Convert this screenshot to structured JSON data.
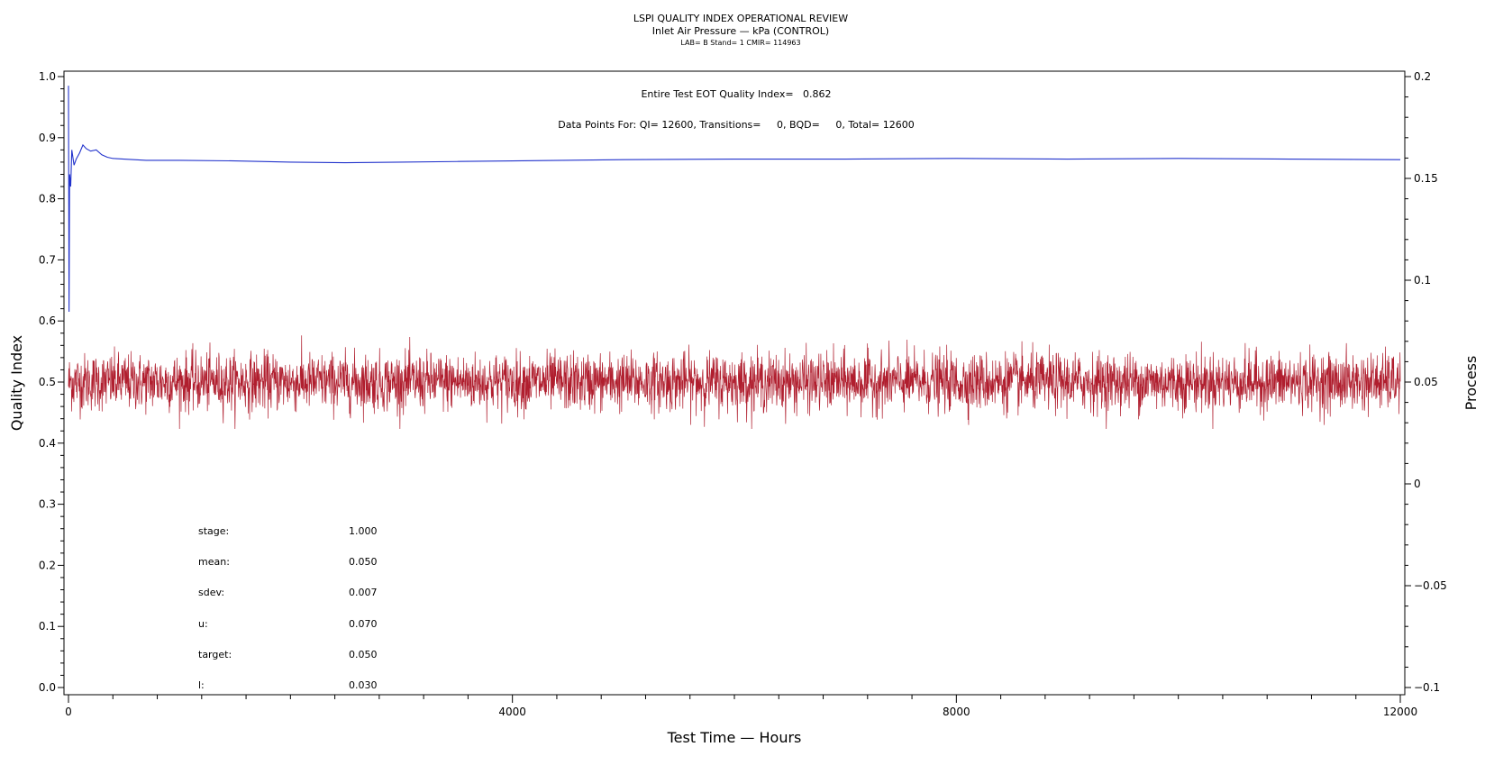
{
  "chart_data": {
    "type": "line",
    "title": "LSPI QUALITY INDEX OPERATIONAL REVIEW",
    "subtitle": "Inlet Air Pressure — kPa (CONTROL)",
    "subtitle2": "LAB= B Stand= 1 CMIR= 114963",
    "annotation_quality": "Entire Test EOT Quality Index=   0.862",
    "annotation_points": "Data Points For: QI= 12600, Transitions=     0, BQD=     0, Total= 12600",
    "xlabel": "Test Time — Hours",
    "ylabel_left": "Quality Index",
    "ylabel_right": "Process",
    "xlim": [
      0,
      12000
    ],
    "ylim_left": [
      0.0,
      1.0
    ],
    "ylim_right": [
      -0.1,
      0.2
    ],
    "x_ticks": [
      "0",
      "4000",
      "8000",
      "12000"
    ],
    "y_left_ticks": [
      "0.0",
      "0.1",
      "0.2",
      "0.3",
      "0.4",
      "0.5",
      "0.6",
      "0.7",
      "0.8",
      "0.9",
      "1.0"
    ],
    "y_right_ticks": [
      "−0.1",
      "−0.05",
      "0",
      "0.05",
      "0.1",
      "0.15",
      "0.2"
    ],
    "grid": false,
    "colors": {
      "quality": "#2233cc",
      "process": "#b01e2e"
    },
    "series": [
      {
        "axis": "left",
        "x": [
          0,
          5,
          10,
          20,
          30,
          50,
          70,
          100,
          130,
          160,
          200,
          250,
          300,
          350,
          400,
          500,
          700,
          1000,
          1500,
          2000,
          2500,
          3000,
          3500,
          4000,
          5000,
          6000,
          7000,
          8000,
          9000,
          10000,
          11000,
          12000
        ],
        "values": [
          0.985,
          0.615,
          0.84,
          0.82,
          0.88,
          0.855,
          0.865,
          0.875,
          0.888,
          0.882,
          0.878,
          0.88,
          0.872,
          0.868,
          0.866,
          0.865,
          0.863,
          0.863,
          0.862,
          0.86,
          0.859,
          0.86,
          0.861,
          0.862,
          0.864,
          0.865,
          0.865,
          0.866,
          0.865,
          0.866,
          0.865,
          0.864
        ]
      },
      {
        "axis": "right",
        "x_range": [
          0,
          12000
        ],
        "n_points": 12600,
        "mean": 0.05,
        "sdev": 0.007,
        "min": 0.027,
        "max": 0.082
      }
    ]
  },
  "stats": [
    {
      "label": "stage:",
      "value": "1.000"
    },
    {
      "label": "mean:",
      "value": "0.050"
    },
    {
      "label": "sdev:",
      "value": "0.007"
    },
    {
      "label": "u:",
      "value": "0.070"
    },
    {
      "label": "target:",
      "value": "0.050"
    },
    {
      "label": "l:",
      "value": "0.030"
    }
  ]
}
